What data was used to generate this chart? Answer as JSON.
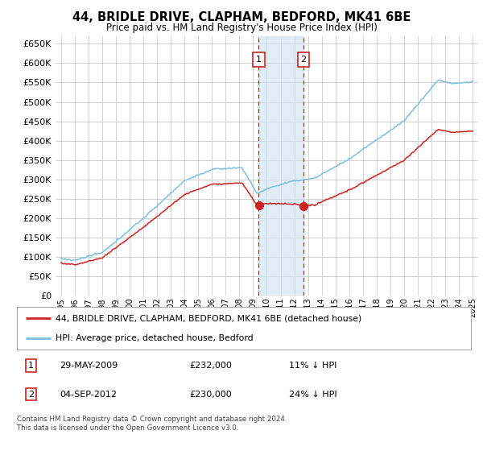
{
  "title": "44, BRIDLE DRIVE, CLAPHAM, BEDFORD, MK41 6BE",
  "subtitle": "Price paid vs. HM Land Registry's House Price Index (HPI)",
  "ylim": [
    0,
    670000
  ],
  "yticks": [
    0,
    50000,
    100000,
    150000,
    200000,
    250000,
    300000,
    350000,
    400000,
    450000,
    500000,
    550000,
    600000,
    650000
  ],
  "background_color": "#ffffff",
  "grid_color": "#cccccc",
  "hpi_color": "#7fbfdf",
  "price_color": "#cc2222",
  "sale1_date": 2009.41,
  "sale1_price": 232000,
  "sale2_date": 2012.67,
  "sale2_price": 230000,
  "legend_label1": "44, BRIDLE DRIVE, CLAPHAM, BEDFORD, MK41 6BE (detached house)",
  "legend_label2": "HPI: Average price, detached house, Bedford",
  "annotation1_date": "29-MAY-2009",
  "annotation1_price": "£232,000",
  "annotation1_hpi": "11% ↓ HPI",
  "annotation2_date": "04-SEP-2012",
  "annotation2_price": "£230,000",
  "annotation2_hpi": "24% ↓ HPI",
  "footer": "Contains HM Land Registry data © Crown copyright and database right 2024.\nThis data is licensed under the Open Government Licence v3.0."
}
